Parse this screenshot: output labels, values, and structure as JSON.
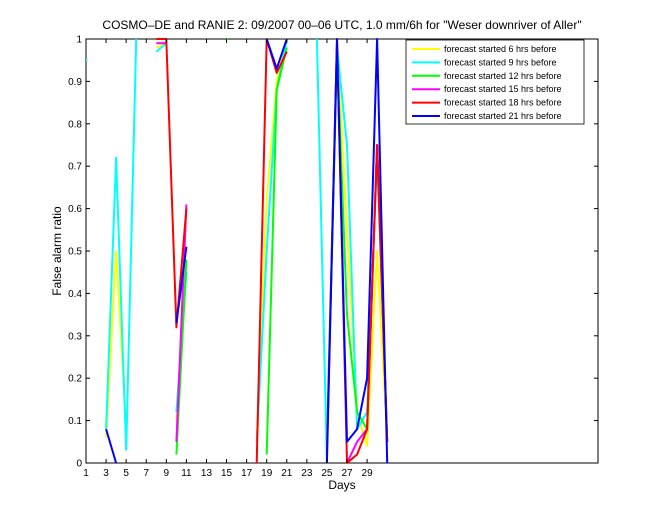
{
  "chart_data": {
    "type": "line",
    "title": "COSMO–DE and RANIE 2: 09/2007 00–06 UTC, 1.0 mm/6h for \"Weser downriver of Aller\"",
    "xlabel": "Days",
    "ylabel": "False alarm ratio",
    "xlim": [
      1,
      52
    ],
    "ylim": [
      0,
      1
    ],
    "x_ticks": [
      1,
      3,
      5,
      7,
      9,
      11,
      13,
      15,
      17,
      19,
      21,
      23,
      25,
      27,
      29
    ],
    "y_ticks": [
      0,
      0.1,
      0.2,
      0.3,
      0.4,
      0.5,
      0.6,
      0.7,
      0.8,
      0.9,
      1
    ],
    "y_tick_labels": [
      "0",
      "0.1",
      "0.2",
      "0.3",
      "0.4",
      "0.5",
      "0.6",
      "0.7",
      "0.8",
      "0.9",
      "1"
    ],
    "grid": false,
    "legend_position": "top-right",
    "series": [
      {
        "name": "forecast started  6 hrs before",
        "color": "#ffff00",
        "segments": [
          [
            [
              1,
              0.95
            ]
          ],
          [
            [
              3,
              0.06
            ],
            [
              4,
              0.5
            ],
            [
              5,
              0.08
            ]
          ],
          [
            [
              8,
              0.98
            ],
            [
              9,
              0.99
            ]
          ],
          [
            [
              10,
              0.1
            ],
            [
              11,
              0.45
            ]
          ],
          [
            [
              18,
              0.05
            ],
            [
              19,
              0.62
            ],
            [
              20,
              0.9
            ],
            [
              21,
              1
            ]
          ],
          [
            [
              25,
              0.05
            ],
            [
              26,
              1
            ],
            [
              27,
              0.55
            ],
            [
              28,
              0.12
            ],
            [
              29,
              0.04
            ],
            [
              30,
              0.5
            ],
            [
              31,
              0.05
            ]
          ]
        ]
      },
      {
        "name": "forecast started  9 hrs before",
        "color": "#00ffff",
        "segments": [
          [
            [
              1,
              0.95
            ]
          ],
          [
            [
              3,
              0.08
            ],
            [
              4,
              0.72
            ],
            [
              5,
              0.03
            ]
          ],
          [
            [
              5,
              0.03
            ],
            [
              6,
              1
            ]
          ],
          [
            [
              8,
              0.97
            ],
            [
              9,
              0.99
            ]
          ],
          [
            [
              10,
              0.12
            ],
            [
              11,
              0.45
            ]
          ],
          [
            [
              18,
              0.05
            ],
            [
              19,
              0.5
            ],
            [
              20,
              0.88
            ],
            [
              21,
              1
            ]
          ],
          [
            [
              24,
              1
            ],
            [
              25,
              0
            ]
          ],
          [
            [
              25,
              0.05
            ],
            [
              26,
              0.98
            ],
            [
              27,
              0.75
            ],
            [
              28,
              0.08
            ],
            [
              29,
              0.12
            ],
            [
              30,
              0.72
            ],
            [
              31,
              0.05
            ]
          ]
        ]
      },
      {
        "name": "forecast started 12 hrs before",
        "color": "#00ff00",
        "segments": [
          [
            [
              15,
              1
            ]
          ],
          [
            [
              10,
              0.02
            ],
            [
              11,
              0.48
            ]
          ],
          [
            [
              19,
              0.02
            ],
            [
              20,
              0.88
            ],
            [
              21,
              0.98
            ]
          ],
          [
            [
              25,
              0.03
            ],
            [
              26,
              0.97
            ],
            [
              27,
              0.35
            ],
            [
              28,
              0.12
            ],
            [
              29,
              0.08
            ],
            [
              30,
              0.75
            ],
            [
              31,
              0.05
            ]
          ]
        ]
      },
      {
        "name": "forecast started 15 hrs before",
        "color": "#ff00ff",
        "segments": [
          [
            [
              8,
              0.99
            ],
            [
              9,
              0.99
            ]
          ],
          [
            [
              10,
              0.05
            ],
            [
              11,
              0.61
            ]
          ],
          [
            [
              27,
              0.0
            ],
            [
              28,
              0.05
            ],
            [
              29,
              0.08
            ],
            [
              30,
              0.75
            ],
            [
              31,
              0.05
            ]
          ]
        ]
      },
      {
        "name": "forecast started 18 hrs before",
        "color": "#ff0000",
        "segments": [
          [
            [
              8,
              1
            ],
            [
              9,
              1
            ],
            [
              10,
              0.32
            ],
            [
              11,
              0.6
            ]
          ],
          [
            [
              18,
              0
            ],
            [
              19,
              1
            ],
            [
              20,
              0.92
            ],
            [
              21,
              0.97
            ]
          ],
          [
            [
              25,
              0.02
            ],
            [
              26,
              1
            ],
            [
              27,
              0
            ],
            [
              28,
              0.02
            ],
            [
              29,
              0.08
            ],
            [
              30,
              0.75
            ],
            [
              31,
              0.05
            ]
          ]
        ]
      },
      {
        "name": "forecast started 21 hrs before",
        "color": "#0000ff",
        "segments": [
          [
            [
              3,
              0.08
            ],
            [
              4,
              0
            ]
          ],
          [
            [
              10,
              0.33
            ],
            [
              11,
              0.51
            ]
          ],
          [
            [
              19,
              1
            ],
            [
              20,
              0.93
            ],
            [
              21,
              1
            ]
          ],
          [
            [
              25,
              0
            ],
            [
              26,
              1
            ],
            [
              27,
              0.05
            ],
            [
              28,
              0.08
            ],
            [
              29,
              0.2
            ],
            [
              30,
              1
            ],
            [
              31,
              0
            ]
          ]
        ]
      }
    ]
  }
}
